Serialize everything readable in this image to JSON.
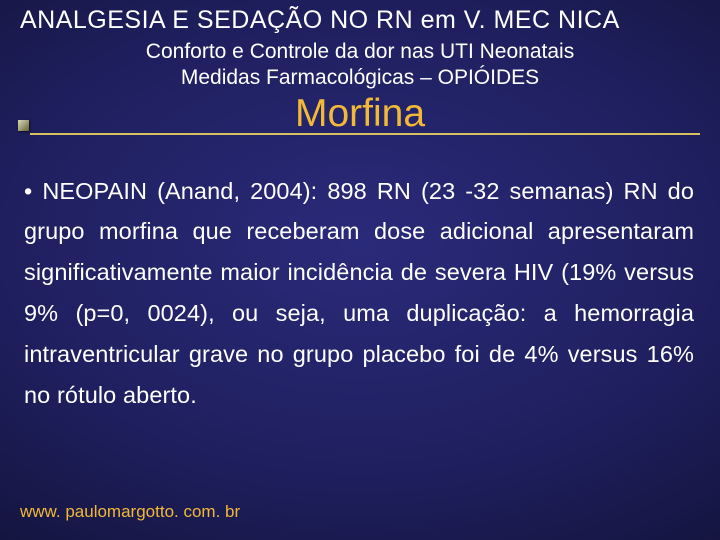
{
  "colors": {
    "title_color": "#ffffff",
    "subtitle_color": "#ffffff",
    "heading_color": "#f2b838",
    "body_color": "#ffffff",
    "footer_color": "#f2b838",
    "underline_color": "#d8c060"
  },
  "typography": {
    "title_fontsize": 25,
    "subtitle_fontsize": 21,
    "heading_fontsize": 39,
    "body_fontsize": 23.5,
    "footer_fontsize": 17,
    "body_lineheight": 1.74
  },
  "title": "ANALGESIA E SEDAÇÃO NO RN em V. MEC NICA",
  "subtitle_line1": "Conforto e Controle da dor nas UTI Neonatais",
  "subtitle_line2": "Medidas Farmacológicas – OPIÓIDES",
  "section_heading": "Morfina",
  "body": "• NEOPAIN (Anand, 2004): 898 RN (23 -32 semanas) RN do grupo morfina que receberam dose adicional apresentaram significativamente maior incidência de severa HIV (19% versus 9% (p=0, 0024), ou seja, uma duplicação: a hemorragia intraventricular grave no grupo placebo foi de 4% versus 16% no rótulo aberto.",
  "footer": "www. paulomargotto. com. br"
}
